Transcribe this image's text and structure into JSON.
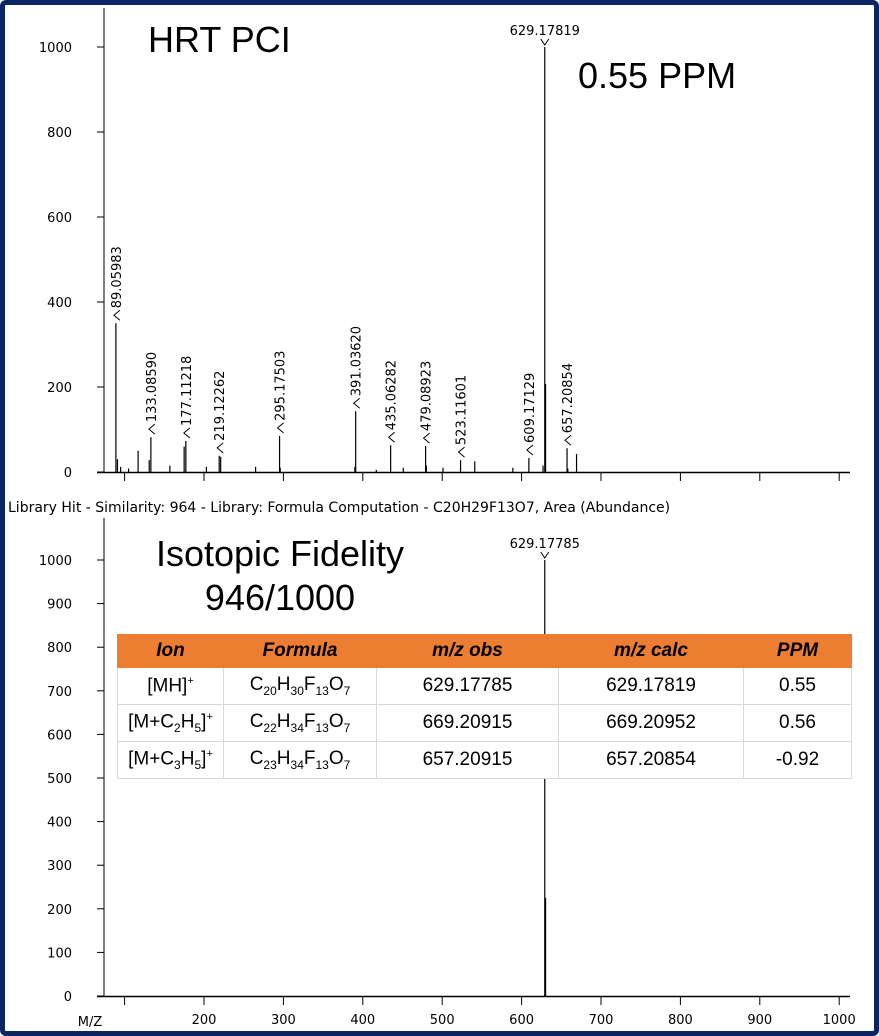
{
  "chart_data": [
    {
      "type": "bar",
      "title": "HRT PCI",
      "annotation": "0.55 PPM",
      "xlabel": "",
      "ylabel": "",
      "xlim": [
        73,
        1013
      ],
      "ylim": [
        0,
        1000
      ],
      "xticks": [
        100,
        200,
        300,
        400,
        500,
        600,
        700,
        800,
        900,
        1000
      ],
      "yticks": [
        0,
        200,
        400,
        600,
        800,
        1000
      ],
      "peaks": [
        {
          "mz": 89.05983,
          "intensity": 350,
          "label": "89.05983"
        },
        {
          "mz": 91.0,
          "intensity": 30
        },
        {
          "mz": 95.0,
          "intensity": 12
        },
        {
          "mz": 105.0,
          "intensity": 8
        },
        {
          "mz": 117.0,
          "intensity": 50
        },
        {
          "mz": 131.0,
          "intensity": 28
        },
        {
          "mz": 133.0859,
          "intensity": 82,
          "label": "133.08590"
        },
        {
          "mz": 157.0,
          "intensity": 15
        },
        {
          "mz": 175.0,
          "intensity": 60
        },
        {
          "mz": 177.11218,
          "intensity": 73,
          "label": "177.11218"
        },
        {
          "mz": 203.0,
          "intensity": 12
        },
        {
          "mz": 219.12262,
          "intensity": 38,
          "label": "219.12262"
        },
        {
          "mz": 221.0,
          "intensity": 36
        },
        {
          "mz": 265.0,
          "intensity": 12
        },
        {
          "mz": 295.17503,
          "intensity": 85,
          "label": "295.17503"
        },
        {
          "mz": 296.0,
          "intensity": 10
        },
        {
          "mz": 391.0362,
          "intensity": 143,
          "label": "391.03620"
        },
        {
          "mz": 390.0,
          "intensity": 12
        },
        {
          "mz": 417.0,
          "intensity": 5
        },
        {
          "mz": 435.06282,
          "intensity": 63,
          "label": "435.06282"
        },
        {
          "mz": 451.0,
          "intensity": 10
        },
        {
          "mz": 479.08923,
          "intensity": 61,
          "label": "479.08923"
        },
        {
          "mz": 480.0,
          "intensity": 15
        },
        {
          "mz": 501.0,
          "intensity": 10
        },
        {
          "mz": 523.11601,
          "intensity": 28,
          "label": "523.11601"
        },
        {
          "mz": 541.0,
          "intensity": 25
        },
        {
          "mz": 589.0,
          "intensity": 10
        },
        {
          "mz": 609.17129,
          "intensity": 33,
          "label": "609.17129"
        },
        {
          "mz": 627.0,
          "intensity": 15
        },
        {
          "mz": 629.17819,
          "intensity": 1000,
          "label": "629.17819",
          "label_position": "top"
        },
        {
          "mz": 630.18,
          "intensity": 207
        },
        {
          "mz": 657.20854,
          "intensity": 56,
          "label": "657.20854"
        },
        {
          "mz": 658.2,
          "intensity": 8
        },
        {
          "mz": 669.2,
          "intensity": 42
        }
      ]
    },
    {
      "type": "bar",
      "title": "Isotopic Fidelity",
      "subtitle": "946/1000",
      "xlabel": "M/Z",
      "ylabel": "",
      "xlim": [
        73,
        1013
      ],
      "ylim": [
        0,
        1000
      ],
      "xticks": [
        100,
        200,
        300,
        400,
        500,
        600,
        700,
        800,
        900,
        1000
      ],
      "xticklabels": [
        "",
        "200",
        "300",
        "400",
        "500",
        "600",
        "700",
        "800",
        "900",
        "1000"
      ],
      "yticks": [
        0,
        100,
        200,
        300,
        400,
        500,
        600,
        700,
        800,
        900,
        1000
      ],
      "peaks": [
        {
          "mz": 629.17785,
          "intensity": 1000,
          "label": "629.17785",
          "label_position": "top"
        },
        {
          "mz": 630.18,
          "intensity": 225
        }
      ]
    }
  ],
  "library_hit": "Library Hit - Similarity: 964 - Library: Formula Computation - C20H29F13O7, Area (Abundance)",
  "table": {
    "headers": [
      "Ion",
      "Formula",
      "m/z obs",
      "m/z calc",
      "PPM"
    ],
    "rows": [
      [
        "[MH]+",
        "C20H30F13O7",
        "629.17785",
        "629.17819",
        "0.55"
      ],
      [
        "[M+C2H5]+",
        "C22H34F13O7",
        "669.20915",
        "669.20952",
        "0.56"
      ],
      [
        "[M+C3H5]+",
        "C23H34F13O7",
        "657.20915",
        "657.20854",
        "-0.92"
      ]
    ],
    "header_color": "#ED7D31"
  },
  "colors": {
    "frame": "#0b2563",
    "peaks": "#000000"
  }
}
